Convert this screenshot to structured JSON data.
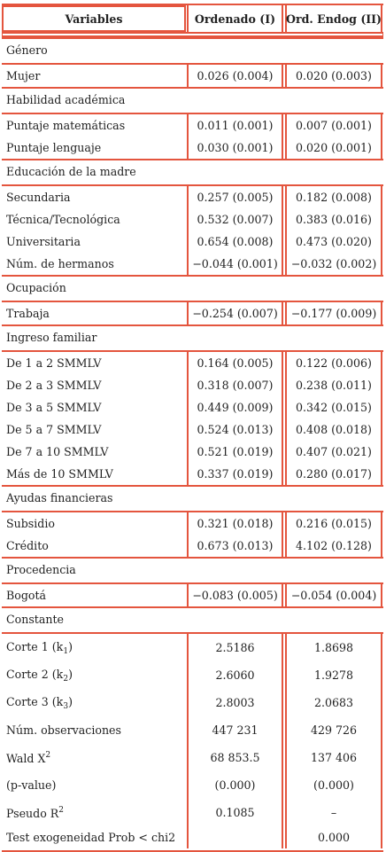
{
  "header": {
    "variables": "Variables",
    "col1": "Ordenado (I)",
    "col2": "Ord. Endog (II)"
  },
  "sections": [
    {
      "title": "Género",
      "rows": [
        {
          "label": "Mujer",
          "v1": "0.026 (0.004)",
          "v2": "0.020 (0.003)"
        }
      ]
    },
    {
      "title": "Habilidad académica",
      "rows": [
        {
          "label": "Puntaje matemáticas",
          "v1": "0.011 (0.001)",
          "v2": "0.007 (0.001)"
        },
        {
          "label": "Puntaje lenguaje",
          "v1": "0.030 (0.001)",
          "v2": "0.020 (0.001)"
        }
      ]
    },
    {
      "title": "Educación de la madre",
      "rows": [
        {
          "label": "Secundaria",
          "v1": "0.257 (0.005)",
          "v2": "0.182 (0.008)"
        },
        {
          "label": "Técnica/Tecnológica",
          "v1": "0.532 (0.007)",
          "v2": "0.383 (0.016)"
        },
        {
          "label": "Universitaria",
          "v1": "0.654 (0.008)",
          "v2": "0.473 (0.020)"
        },
        {
          "label": "Núm. de hermanos",
          "v1": "−0.044 (0.001)",
          "v2": "−0.032 (0.002)"
        }
      ]
    },
    {
      "title": "Ocupación",
      "rows": [
        {
          "label": "Trabaja",
          "v1": "−0.254 (0.007)",
          "v2": "−0.177 (0.009)"
        }
      ]
    },
    {
      "title": "Ingreso familiar",
      "rows": [
        {
          "label": "De 1 a 2 SMMLV",
          "v1": "0.164 (0.005)",
          "v2": "0.122 (0.006)"
        },
        {
          "label": "De 2 a 3 SMMLV",
          "v1": "0.318 (0.007)",
          "v2": "0.238 (0.011)"
        },
        {
          "label": "De 3 a 5 SMMLV",
          "v1": "0.449 (0.009)",
          "v2": "0.342 (0.015)"
        },
        {
          "label": "De 5 a 7 SMMLV",
          "v1": "0.524 (0.013)",
          "v2": "0.408 (0.018)"
        },
        {
          "label": "De 7 a 10 SMMLV",
          "v1": "0.521 (0.019)",
          "v2": "0.407 (0.021)"
        },
        {
          "label": "Más de 10 SMMLV",
          "v1": "0.337 (0.019)",
          "v2": "0.280 (0.017)"
        }
      ]
    },
    {
      "title": "Ayudas financieras",
      "rows": [
        {
          "label": "Subsidio",
          "v1": "0.321 (0.018)",
          "v2": "0.216 (0.015)"
        },
        {
          "label": "Crédito",
          "v1": "0.673 (0.013)",
          "v2": "4.102 (0.128)"
        }
      ]
    },
    {
      "title": "Procedencia",
      "rows": [
        {
          "label": "Bogotá",
          "v1": "−0.083 (0.005)",
          "v2": "−0.054 (0.004)"
        }
      ]
    },
    {
      "title": "Constante",
      "rows": [
        {
          "label": "Corte 1 (k",
          "label_sub": "1",
          "label_end": ")",
          "v1": "2.5186",
          "v2": "1.8698",
          "tall": true
        },
        {
          "label": "Corte 2 (k",
          "label_sub": "2",
          "label_end": ")",
          "v1": "2.6060",
          "v2": "1.9278",
          "tall": true
        },
        {
          "label": "Corte 3 (k",
          "label_sub": "3",
          "label_end": ")",
          "v1": "2.8003",
          "v2": "2.0683",
          "tall": true
        },
        {
          "label": "Núm. observaciones",
          "v1": "447 231",
          "v2": "429 726",
          "tall": true
        },
        {
          "label": "Wald X",
          "label_sup": "2",
          "v1": "68 853.5",
          "v2": "137 406",
          "tall": true
        },
        {
          "label": "(p-value)",
          "v1": "(0.000)",
          "v2": "(0.000)",
          "tall": true
        },
        {
          "label": "Pseudo R",
          "label_sup": "2",
          "v1": "0.1085",
          "v2": "–",
          "tall": true
        },
        {
          "label": "Test exogeneidad Prob < chi2",
          "v1": "",
          "v2": "0.000",
          "tall": false
        }
      ]
    }
  ]
}
